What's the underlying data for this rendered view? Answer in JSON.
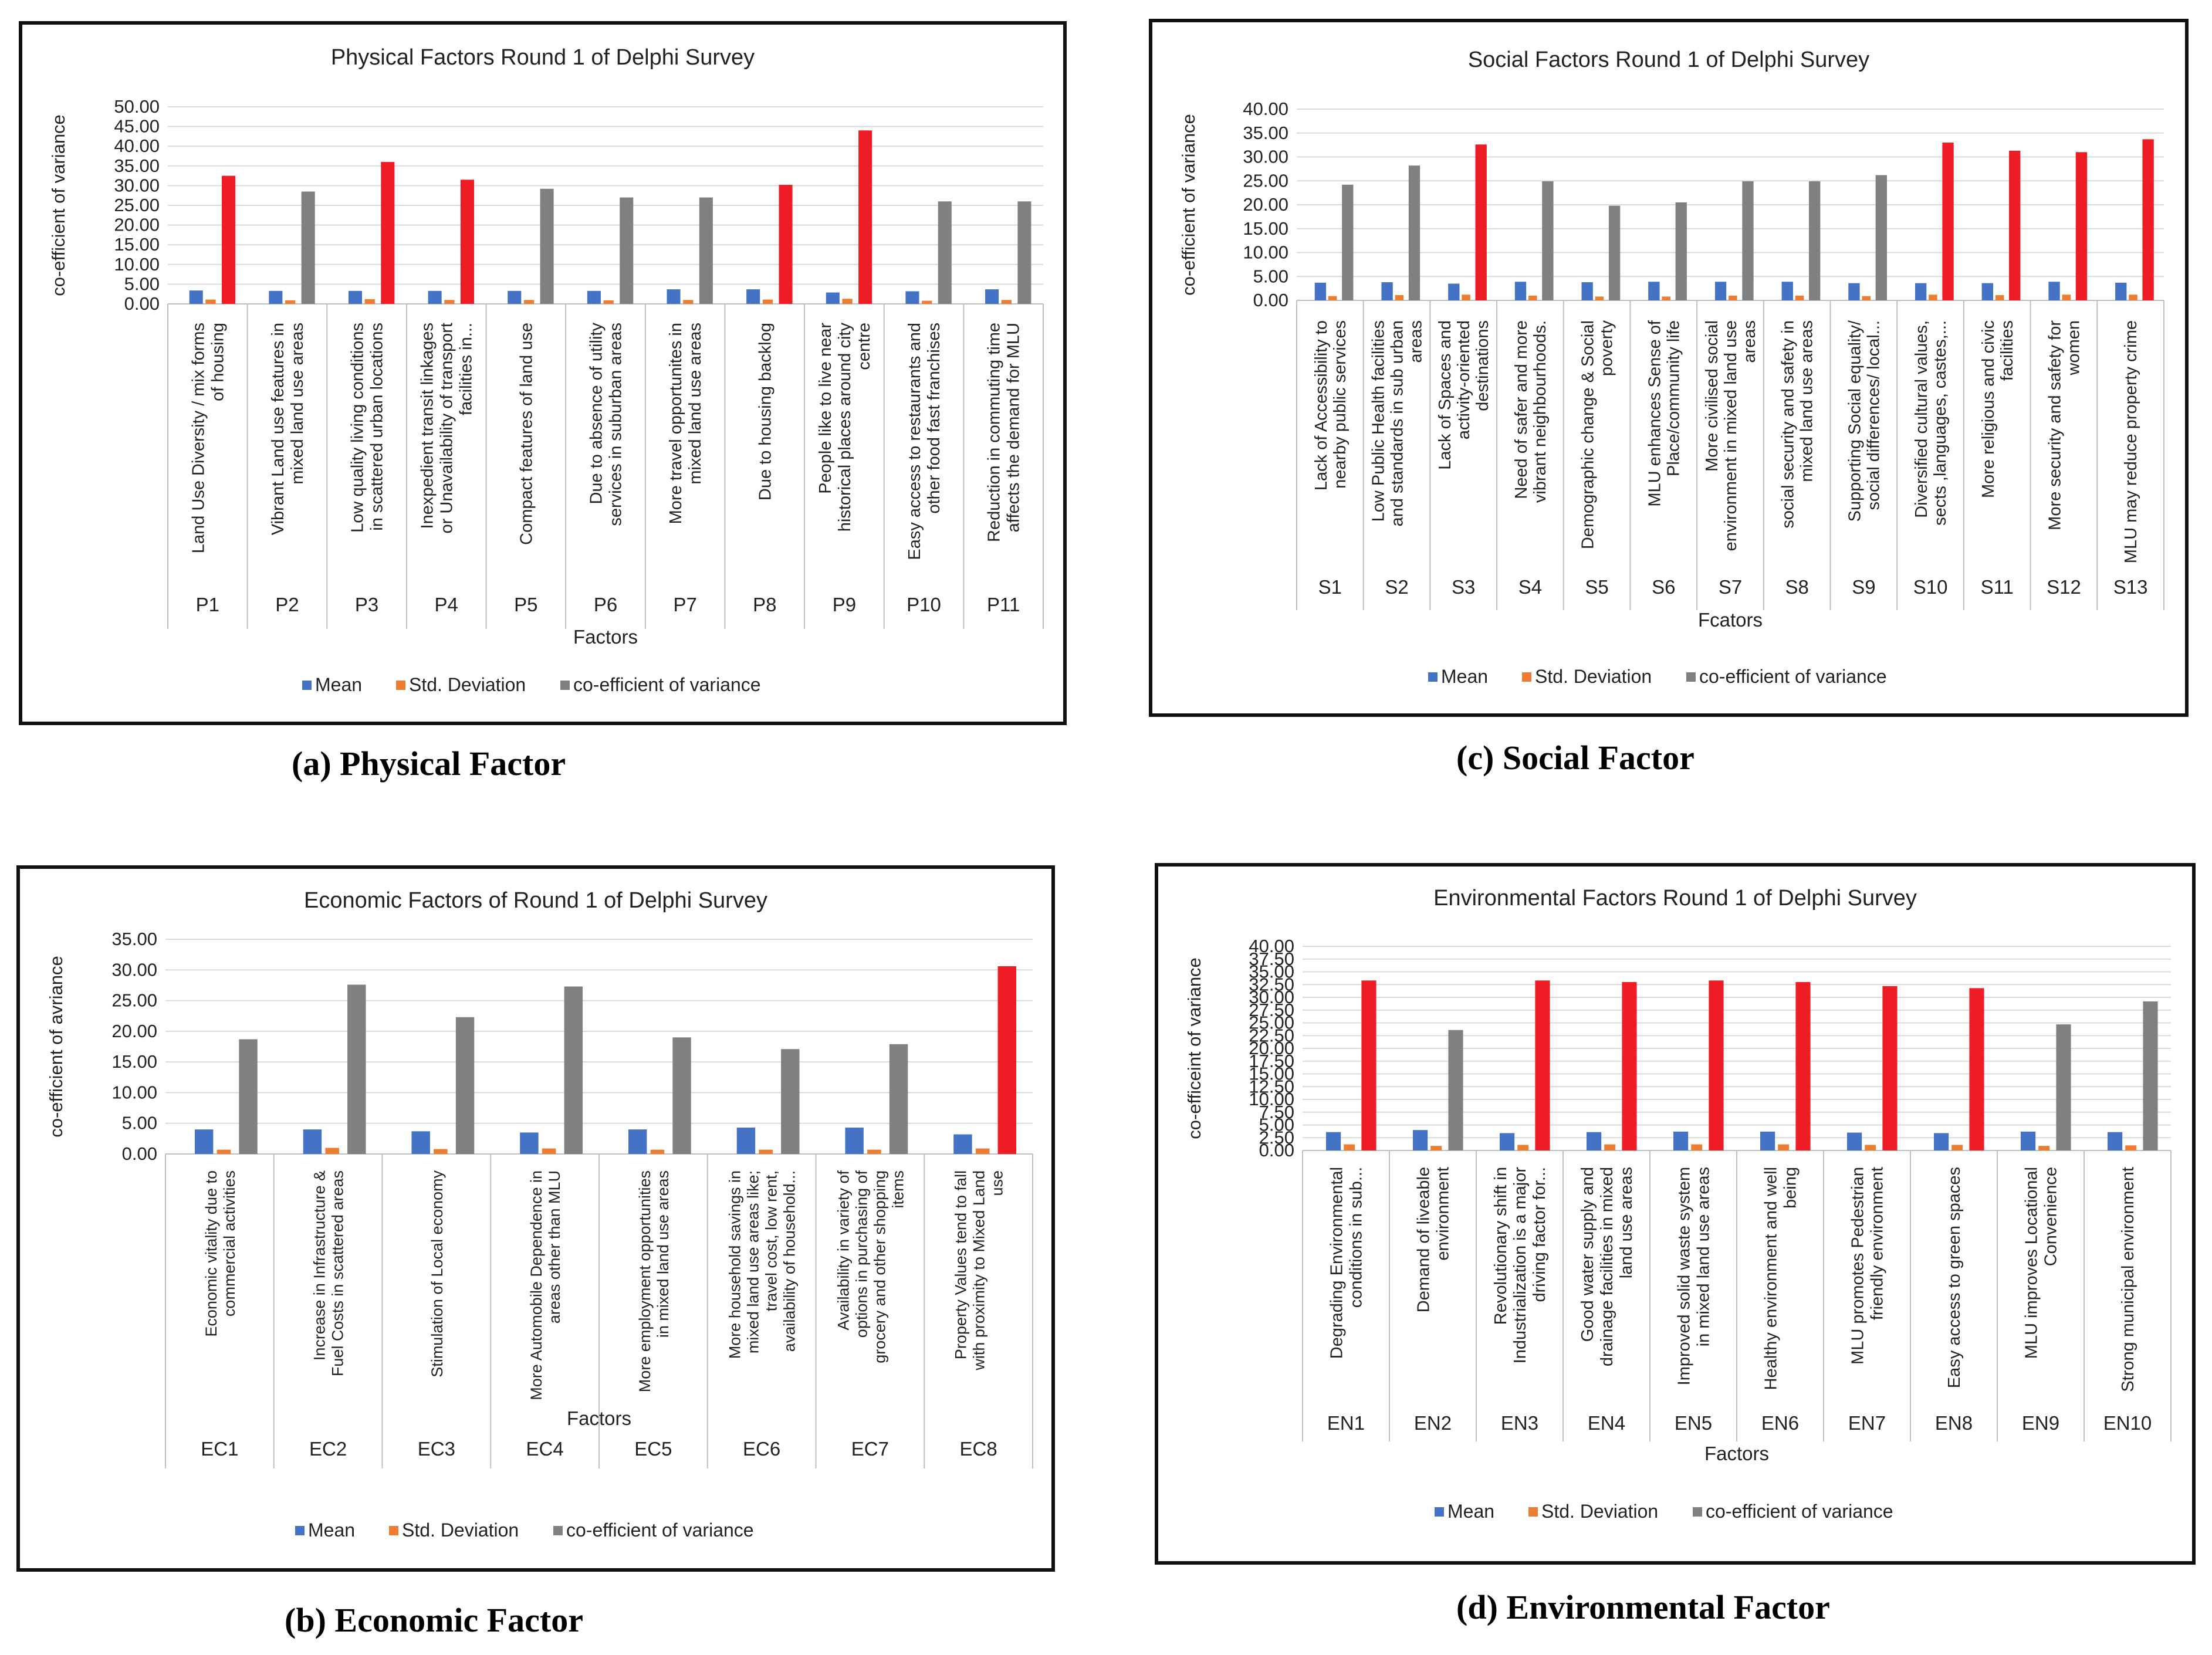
{
  "legend": {
    "mean": "Mean",
    "sd": "Std. Deviation",
    "cv": "co-efficient of variance"
  },
  "colors": {
    "mean": "#4472c4",
    "sd": "#ed7d31",
    "cv_gray": "#808080",
    "cv_red": "#ee1c24",
    "grid": "#d9d9d9",
    "axis": "#bfbfbf"
  },
  "panels": [
    {
      "id": "physical",
      "caption": "(a) Physical Factor",
      "chart_data": {
        "type": "bar",
        "title": "Physical Factors Round 1 of Delphi Survey",
        "ylabel": "co-efficient of variance",
        "xlabel": "Factors",
        "ylim": [
          0,
          50
        ],
        "ytick_step": 5,
        "categories": [
          "P1",
          "P2",
          "P3",
          "P4",
          "P5",
          "P6",
          "P7",
          "P8",
          "P9",
          "P10",
          "P11"
        ],
        "labels": [
          "Land Use Diversity / mix forms of housing",
          "Vibrant Land use features in mixed land use areas",
          "Low quality living conditions in scattered urban locations",
          "Inexpedient transit linkages or Unavailability of transport facilities in...",
          "Compact features of land use",
          "Due to absence of utility services in suburban areas",
          "More travel opportunites in mixed land use areas",
          "Due to housing backlog",
          "People like to live near historical places around city centre",
          "Easy access to restaurants and other food fast franchises",
          "Reduction in commuting time affects the demand for MLU"
        ],
        "series": [
          {
            "name": "Mean",
            "values": [
              3.4,
              3.3,
              3.3,
              3.3,
              3.3,
              3.3,
              3.7,
              3.7,
              2.9,
              3.2,
              3.7
            ]
          },
          {
            "name": "Std. Deviation",
            "values": [
              1.1,
              0.9,
              1.2,
              1.0,
              1.0,
              0.9,
              1.0,
              1.1,
              1.3,
              0.8,
              1.0
            ]
          },
          {
            "name": "co-efficient of variance",
            "values": [
              32.5,
              28.5,
              36.0,
              31.5,
              29.2,
              27.0,
              27.0,
              30.2,
              44.0,
              26.0,
              26.0
            ]
          }
        ],
        "highlight": [
          true,
          false,
          true,
          true,
          false,
          false,
          false,
          true,
          true,
          false,
          false
        ]
      }
    },
    {
      "id": "economic",
      "caption": "(b) Economic Factor",
      "chart_data": {
        "type": "bar",
        "title": "Economic Factors of Round 1 of Delphi Survey",
        "ylabel": "co-efficient of avriance",
        "xlabel": "Factors",
        "ylim": [
          0,
          35
        ],
        "ytick_step": 5,
        "categories": [
          "EC1",
          "EC2",
          "EC3",
          "EC4",
          "EC5",
          "EC6",
          "EC7",
          "EC8"
        ],
        "labels": [
          "Economic vitality due to commercial activities",
          "Increase in Infrastructure & Fuel Costs in scattered areas",
          "Stimulation of Local economy",
          "More Automobile Dependence in areas other than MLU",
          "More employment opportunities in mixed land use areas",
          "More household savings in mixed land use areas like; travel cost, low rent, availability of household...",
          "Availability in variety of options in purchasing of grocery and other shopping items",
          "Property Values tend to fall with proximity to Mixed Land use"
        ],
        "series": [
          {
            "name": "Mean",
            "values": [
              4.0,
              4.0,
              3.7,
              3.5,
              4.0,
              4.3,
              4.3,
              3.2
            ]
          },
          {
            "name": "Std. Deviation",
            "values": [
              0.7,
              1.0,
              0.8,
              0.9,
              0.7,
              0.7,
              0.7,
              0.9
            ]
          },
          {
            "name": "co-efficient of variance",
            "values": [
              18.7,
              27.6,
              22.3,
              27.3,
              19.0,
              17.1,
              17.9,
              30.6
            ]
          }
        ],
        "highlight": [
          false,
          false,
          false,
          false,
          false,
          false,
          false,
          true
        ]
      }
    },
    {
      "id": "social",
      "caption": "(c) Social Factor",
      "chart_data": {
        "type": "bar",
        "title": "Social Factors Round 1 of Delphi Survey",
        "ylabel": "co-efficient of variance",
        "xlabel": "Fcators",
        "ylim": [
          0,
          40
        ],
        "ytick_step": 5,
        "categories": [
          "S1",
          "S2",
          "S3",
          "S4",
          "S5",
          "S6",
          "S7",
          "S8",
          "S9",
          "S10",
          "S11",
          "S12",
          "S13"
        ],
        "labels": [
          "Lack of Accessibility to nearby public services",
          "Low Public Health facilities and standards in sub urban areas",
          "Lack of Spaces and activity-oriented destinations",
          "Need of safer and more vibrant neighbourhoods.",
          "Demographic change & Social poverty",
          "MLU enhances Sense of Place/community life",
          "More civilised social environment in mixed land use areas",
          "social security and safety in mixed land use areas",
          "Supporting Social equality/ social differences/ local...",
          "Diversified cultural values, sects ,languages, castes,...",
          "More religious and civic facilities",
          "More security and safety for women",
          "MLU may reduce property crime"
        ],
        "series": [
          {
            "name": "Mean",
            "values": [
              3.7,
              3.8,
              3.5,
              3.9,
              3.8,
              3.9,
              3.9,
              3.9,
              3.6,
              3.6,
              3.6,
              3.9,
              3.7
            ]
          },
          {
            "name": "Std. Deviation",
            "values": [
              0.9,
              1.1,
              1.2,
              1.0,
              0.8,
              0.8,
              1.0,
              1.0,
              0.9,
              1.2,
              1.1,
              1.2,
              1.2
            ]
          },
          {
            "name": "co-efficient of variance",
            "values": [
              24.2,
              28.2,
              32.6,
              24.9,
              19.8,
              20.5,
              24.9,
              24.9,
              26.2,
              33.0,
              31.3,
              31.0,
              33.7
            ]
          }
        ],
        "highlight": [
          false,
          false,
          true,
          false,
          false,
          false,
          false,
          false,
          false,
          true,
          true,
          true,
          true
        ]
      }
    },
    {
      "id": "environmental",
      "caption": "(d) Environmental Factor",
      "chart_data": {
        "type": "bar",
        "title": "Environmental Factors Round 1 of Delphi Survey",
        "ylabel": "co-efficeint of variance",
        "xlabel": "Factors",
        "ylim": [
          0,
          40
        ],
        "ytick_step": 2.5,
        "categories": [
          "EN1",
          "EN2",
          "EN3",
          "EN4",
          "EN5",
          "EN6",
          "EN7",
          "EN8",
          "EN9",
          "EN10"
        ],
        "labels": [
          "Degrading Environmental conditions in sub...",
          "Demand of liveable environment",
          "Revolutionary shift in Industrialization is a major driving factor for...",
          "Good water supply and drainage facilities in mixed land use areas",
          "Improved solid waste system in mixed land use areas",
          "Healthy environment and well being",
          "MLU promotes Pedestrian friendly environment",
          "Easy access to green spaces",
          "MLU improves Locational Convenience",
          "Strong municipal environment"
        ],
        "series": [
          {
            "name": "Mean",
            "values": [
              3.6,
              4.0,
              3.4,
              3.6,
              3.7,
              3.7,
              3.5,
              3.4,
              3.7,
              3.6
            ]
          },
          {
            "name": "Std. Deviation",
            "values": [
              1.2,
              0.9,
              1.1,
              1.2,
              1.2,
              1.2,
              1.1,
              1.1,
              0.9,
              1.0
            ]
          },
          {
            "name": "co-efficient of variance",
            "values": [
              33.3,
              23.6,
              33.3,
              33.0,
              33.3,
              33.0,
              32.2,
              31.8,
              24.7,
              29.2
            ]
          }
        ],
        "highlight": [
          true,
          false,
          true,
          true,
          true,
          true,
          true,
          true,
          false,
          false
        ]
      }
    }
  ]
}
